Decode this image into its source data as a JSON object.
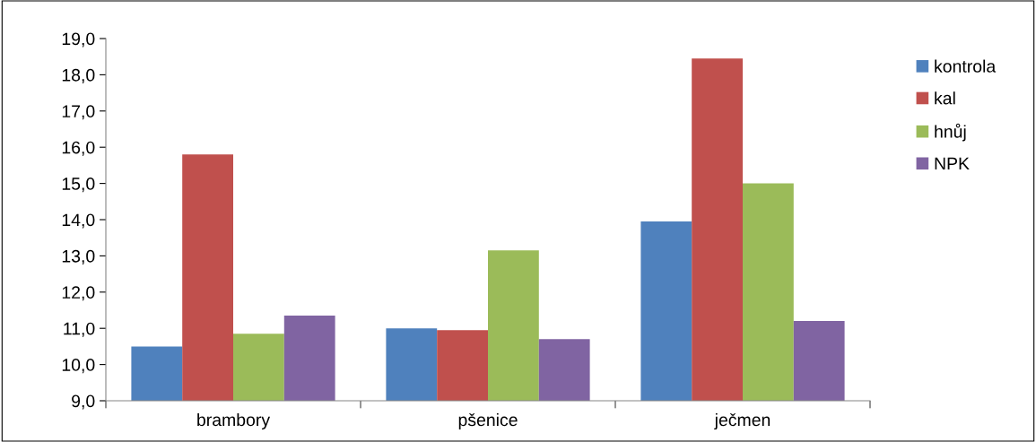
{
  "chart_data": {
    "type": "bar",
    "categories": [
      "brambory",
      "pšenice",
      "ječmen"
    ],
    "series": [
      {
        "name": "kontrola",
        "color": "#4f81bd",
        "values": [
          10.5,
          11.0,
          13.95
        ]
      },
      {
        "name": "kal",
        "color": "#c0504d",
        "values": [
          15.8,
          10.95,
          18.45
        ]
      },
      {
        "name": "hnůj",
        "color": "#9bbb59",
        "values": [
          10.85,
          13.15,
          15.0
        ]
      },
      {
        "name": "NPK",
        "color": "#8064a2",
        "values": [
          11.35,
          10.7,
          11.2
        ]
      }
    ],
    "ylim": [
      9,
      19
    ],
    "yticks": [
      {
        "value": 9,
        "label": "9,0"
      },
      {
        "value": 10,
        "label": "10,0"
      },
      {
        "value": 11,
        "label": "11,0"
      },
      {
        "value": 12,
        "label": "12,0"
      },
      {
        "value": 13,
        "label": "13,0"
      },
      {
        "value": 14,
        "label": "14,0"
      },
      {
        "value": 15,
        "label": "15,0"
      },
      {
        "value": 16,
        "label": "16,0"
      },
      {
        "value": 17,
        "label": "17,0"
      },
      {
        "value": 18,
        "label": "18,0"
      },
      {
        "value": 19,
        "label": "19,0"
      }
    ],
    "grid": false,
    "legend": "top right"
  }
}
